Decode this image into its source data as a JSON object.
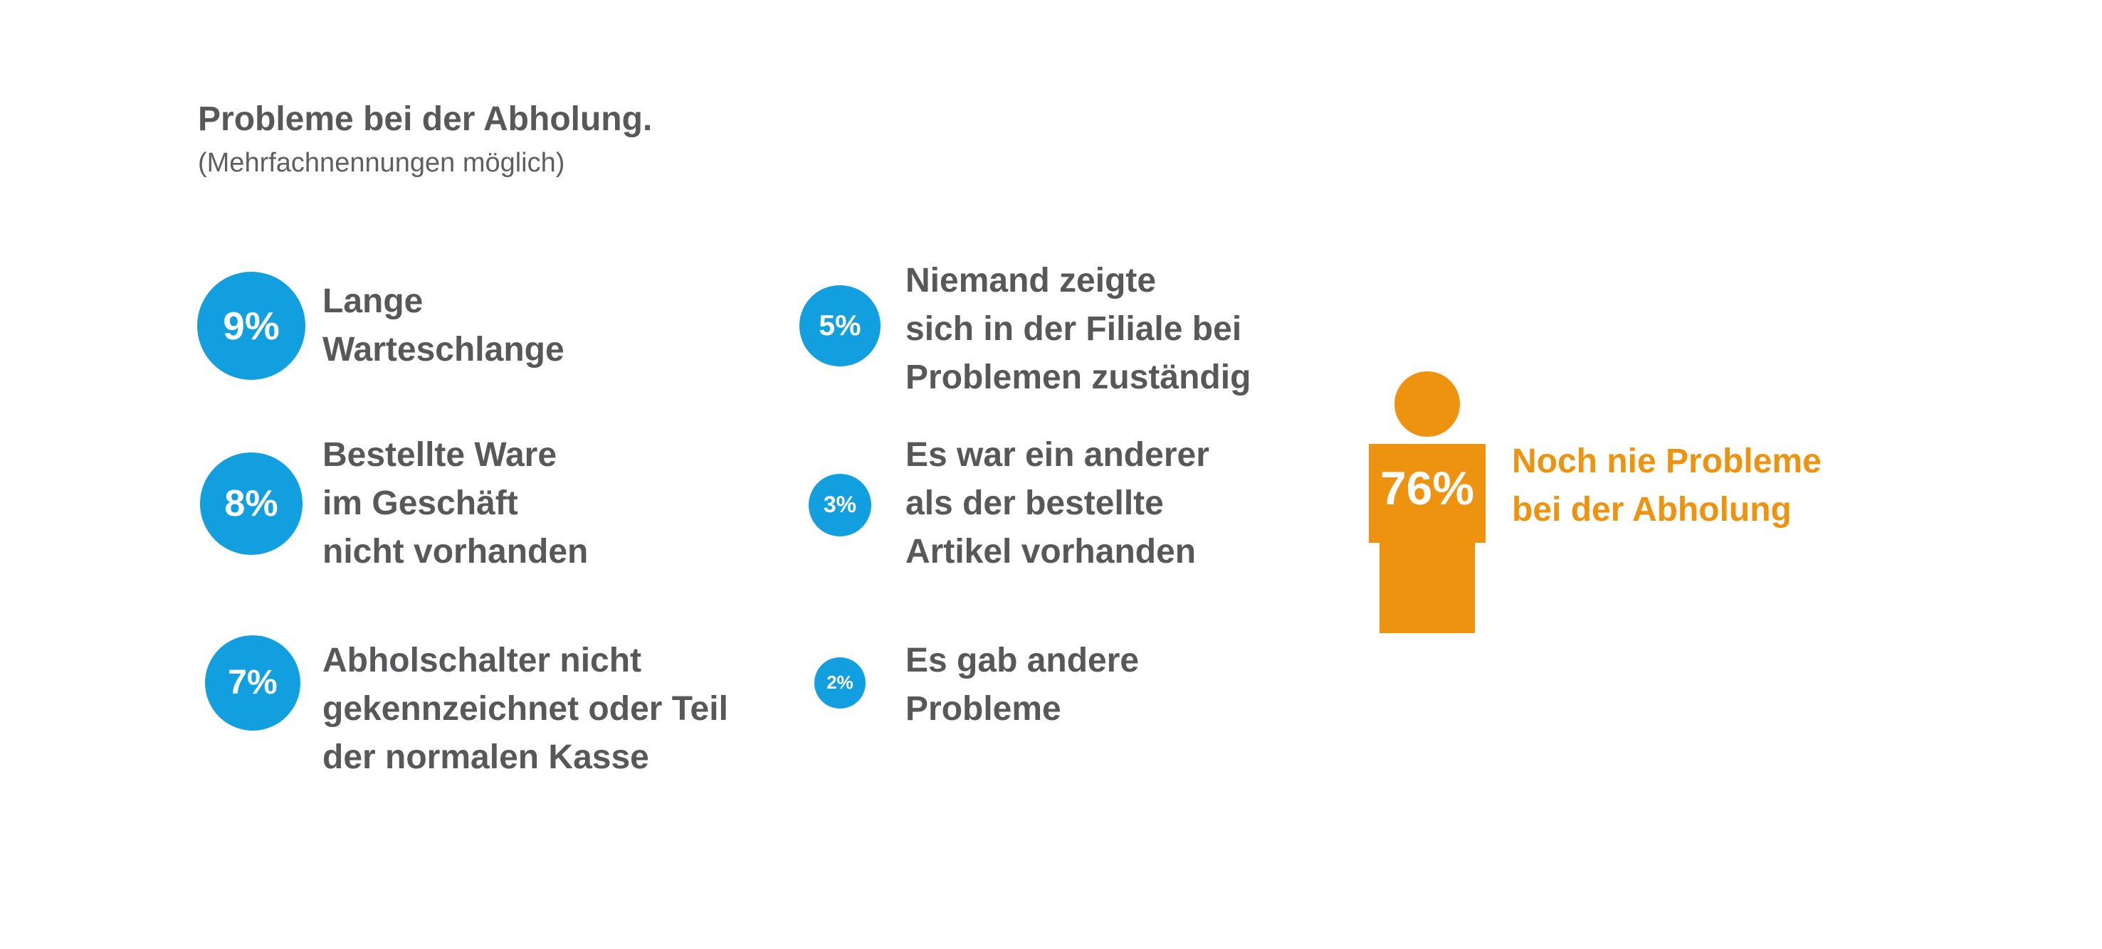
{
  "title": "Probleme bei der Abholung.",
  "subtitle": "(Mehrfachnennungen möglich)",
  "colors": {
    "circle": "#129fdf",
    "highlight": "#ee930f",
    "text": "#58585a"
  },
  "chart_data": {
    "type": "infographic",
    "title": "Probleme bei der Abholung.",
    "subtitle": "(Mehrfachnennungen möglich)",
    "unit": "%",
    "items": [
      {
        "value": 9,
        "value_label": "9%",
        "label": "Lange\nWarteschlange"
      },
      {
        "value": 8,
        "value_label": "8%",
        "label": "Bestellte Ware\nim Geschäft\nnicht vorhanden"
      },
      {
        "value": 7,
        "value_label": "7%",
        "label": "Abholschalter nicht\ngekennzeichnet oder Teil\nder normalen Kasse"
      },
      {
        "value": 5,
        "value_label": "5%",
        "label": "Niemand zeigte\nsich in der Filiale bei\nProblemen zuständig"
      },
      {
        "value": 3,
        "value_label": "3%",
        "label": "Es war ein anderer\nals der bestellte\nArtikel vorhanden"
      },
      {
        "value": 2,
        "value_label": "2%",
        "label": "Es gab andere\nProbleme"
      }
    ],
    "highlight": {
      "value": 76,
      "value_label": "76%",
      "label": "Noch nie Probleme\nbei der Abholung",
      "icon": "person-icon"
    }
  }
}
